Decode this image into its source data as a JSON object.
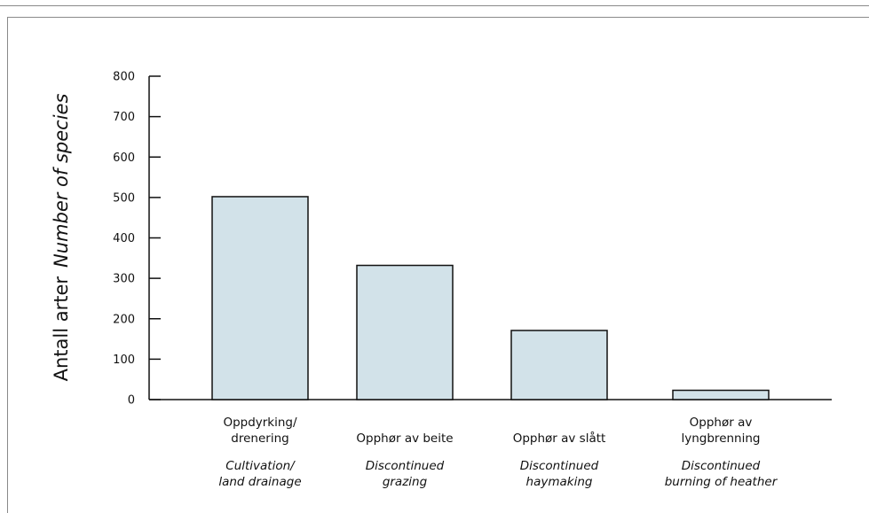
{
  "chart_data": {
    "type": "bar",
    "ylabel": "Antall arter",
    "ylabel_translation": "Number of species",
    "ylim": [
      0,
      800
    ],
    "yticks": [
      "0",
      "100",
      "200",
      "300",
      "400",
      "500",
      "600",
      "700",
      "800"
    ],
    "grid": false,
    "bar_color": "#d2e2e9",
    "categories": [
      {
        "label": [
          "Oppdyrking/",
          "drenering"
        ],
        "translation": [
          "Cultivation/",
          "land drainage"
        ],
        "value": 502
      },
      {
        "label": [
          "Opphør av beite"
        ],
        "translation": [
          "Discontinued",
          "grazing"
        ],
        "value": 332
      },
      {
        "label": [
          "Opphør av slått"
        ],
        "translation": [
          "Discontinued",
          "haymaking"
        ],
        "value": 171
      },
      {
        "label": [
          "Opphør av",
          "lyngbrenning"
        ],
        "translation": [
          "Discontinued",
          "burning of heather"
        ],
        "value": 23
      }
    ]
  }
}
